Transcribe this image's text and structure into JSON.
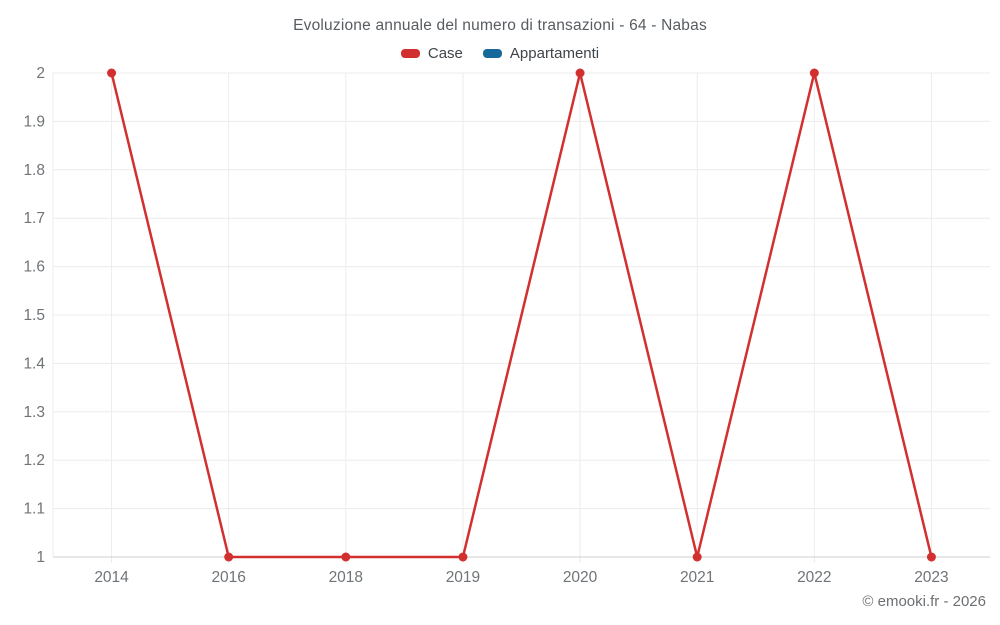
{
  "footer": {
    "copyright": "© emooki.fr - 2026"
  },
  "chart_data": {
    "type": "line",
    "title": "Evoluzione annuale del numero di transazioni - 64 - Nabas",
    "categories": [
      "2014",
      "2016",
      "2018",
      "2019",
      "2020",
      "2021",
      "2022",
      "2023"
    ],
    "series": [
      {
        "name": "Case",
        "color": "#d2302f",
        "values": [
          2,
          1,
          1,
          1,
          2,
          1,
          2,
          1
        ]
      },
      {
        "name": "Appartamenti",
        "color": "#17699c",
        "values": []
      }
    ],
    "xlabel": "",
    "ylabel": "",
    "ylim": [
      1,
      2
    ],
    "ytick_step": 0.1,
    "grid": true,
    "legend_position": "top",
    "colors": {
      "gridline": "#ececec",
      "axis_line": "#cbcfd3",
      "tick_label": "#707477"
    }
  }
}
